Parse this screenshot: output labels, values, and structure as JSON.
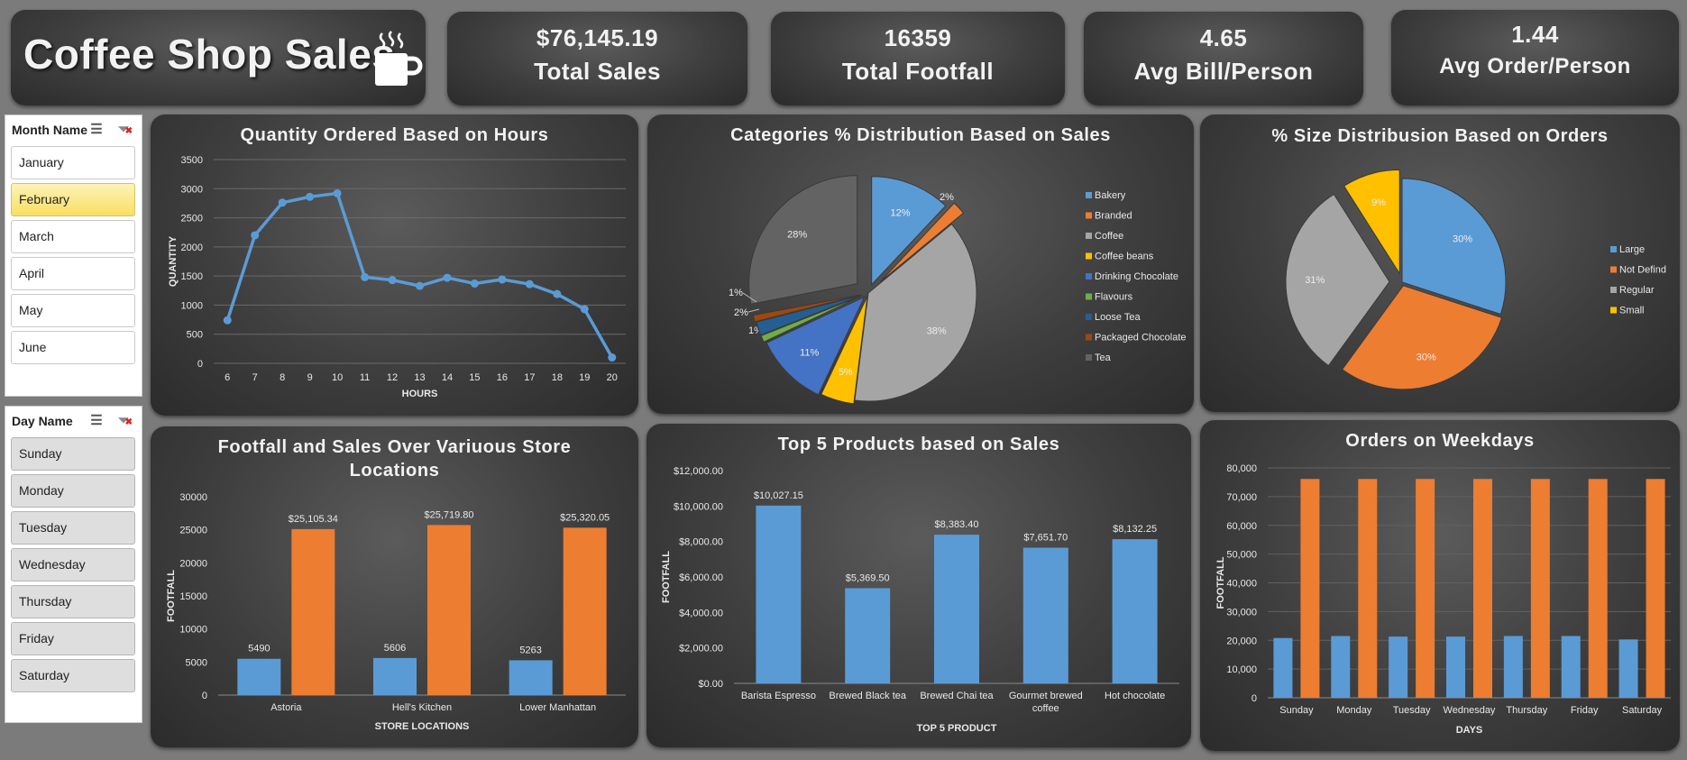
{
  "title": "Coffee Shop Sales",
  "kpis": [
    {
      "value": "$76,145.19",
      "label": "Total Sales"
    },
    {
      "value": "16359",
      "label": "Total Footfall"
    },
    {
      "value": "4.65",
      "label": "Avg Bill/Person"
    },
    {
      "value": "1.44",
      "label": "Avg Order/Person"
    }
  ],
  "month_slicer": {
    "title": "Month Name",
    "items": [
      "January",
      "February",
      "March",
      "April",
      "May",
      "June"
    ],
    "selected": "February"
  },
  "day_slicer": {
    "title": "Day Name",
    "items": [
      "Sunday",
      "Monday",
      "Tuesday",
      "Wednesday",
      "Thursday",
      "Friday",
      "Saturday"
    ]
  },
  "colors": {
    "blue": "#5b9bd5",
    "orange": "#ed7d31",
    "gray": "#a5a5a5",
    "yellow": "#ffc000",
    "darkgray": "#6b6b6b"
  },
  "chart_data": [
    {
      "id": "hours",
      "type": "line",
      "title": "Quantity Ordered Based on Hours",
      "xlabel": "HOURS",
      "ylabel": "QUANTITY",
      "x": [
        6,
        7,
        8,
        9,
        10,
        11,
        12,
        13,
        14,
        15,
        16,
        17,
        18,
        19,
        20
      ],
      "y": [
        740,
        2200,
        2760,
        2860,
        2920,
        1480,
        1430,
        1330,
        1470,
        1370,
        1440,
        1360,
        1190,
        930,
        100
      ],
      "ylim": [
        0,
        3500
      ],
      "yticks": [
        0,
        500,
        1000,
        1500,
        2000,
        2500,
        3000,
        3500
      ],
      "grid": true
    },
    {
      "id": "categories",
      "type": "pie",
      "title": "Categories % Distribution Based on Sales",
      "labels": [
        "Bakery",
        "Branded",
        "Coffee",
        "Coffee beans",
        "Drinking Chocolate",
        "Flavours",
        "Loose Tea",
        "Packaged Chocolate",
        "Tea"
      ],
      "values": [
        12,
        2,
        38,
        5,
        11,
        1,
        2,
        1,
        28
      ],
      "value_labels": [
        "12%",
        "2%",
        "38%",
        "5%",
        "11%",
        "1%",
        "2%",
        "1%",
        "28%"
      ],
      "colors": [
        "#5b9bd5",
        "#ed7d31",
        "#a5a5a5",
        "#ffc000",
        "#4472c4",
        "#70ad47",
        "#255e91",
        "#9e480e",
        "#636363"
      ],
      "legend": "right"
    },
    {
      "id": "sizes",
      "type": "pie",
      "title": "% Size Distribusion Based on Orders",
      "labels": [
        "Large",
        "Not Defind",
        "Regular",
        "Small"
      ],
      "values": [
        30,
        30,
        31,
        9
      ],
      "value_labels": [
        "30%",
        "30%",
        "31%",
        "9%"
      ],
      "colors": [
        "#5b9bd5",
        "#ed7d31",
        "#a5a5a5",
        "#ffc000"
      ],
      "legend": "right"
    },
    {
      "id": "locations",
      "type": "bar",
      "title": "Footfall and Sales Over Variuous Store Locations",
      "xlabel": "STORE LOCATIONS",
      "ylabel": "FOOTFALL",
      "categories": [
        "Astoria",
        "Hell's Kitchen",
        "Lower Manhattan"
      ],
      "series": [
        {
          "values": [
            5490,
            5606,
            5263
          ],
          "labels": [
            "5490",
            "5606",
            "5263"
          ]
        },
        {
          "values": [
            25105.34,
            25719.8,
            25320.05
          ],
          "labels": [
            "$25,105.34",
            "$25,719.80",
            "$25,320.05"
          ]
        }
      ],
      "ylim": [
        0,
        30000
      ],
      "yticks": [
        "0",
        "5000",
        "10000",
        "15000",
        "20000",
        "25000",
        "30000"
      ]
    },
    {
      "id": "products",
      "type": "bar",
      "title": "Top 5 Products based on Sales",
      "xlabel": "TOP 5 PRODUCT",
      "ylabel": "FOOTFALL",
      "categories": [
        "Barista Espresso",
        "Brewed Black tea",
        "Brewed Chai tea",
        "Gourmet brewed coffee",
        "Hot chocolate"
      ],
      "series": [
        {
          "values": [
            10027.15,
            5369.5,
            8383.4,
            7651.7,
            8132.25
          ],
          "labels": [
            "$10,027.15",
            "$5,369.50",
            "$8,383.40",
            "$7,651.70",
            "$8,132.25"
          ]
        }
      ],
      "ylim": [
        0,
        12000
      ],
      "yticks": [
        "$0.00",
        "$2,000.00",
        "$4,000.00",
        "$6,000.00",
        "$8,000.00",
        "$10,000.00",
        "$12,000.00"
      ]
    },
    {
      "id": "weekdays",
      "type": "bar",
      "title": "Orders on Weekdays",
      "xlabel": "DAYS",
      "ylabel": "FOOTFALL",
      "categories": [
        "Sunday",
        "Monday",
        "Tuesday",
        "Wednesday",
        "Thursday",
        "Friday",
        "Saturday"
      ],
      "series": [
        {
          "values": [
            20800,
            21500,
            21300,
            21300,
            21500,
            21500,
            20300
          ]
        },
        {
          "values": [
            76145,
            76145,
            76145,
            76145,
            76145,
            76145,
            76145
          ]
        }
      ],
      "ylim": [
        0,
        80000
      ],
      "yticks": [
        "0",
        "10,000",
        "20,000",
        "30,000",
        "40,000",
        "50,000",
        "60,000",
        "70,000",
        "80,000"
      ]
    }
  ]
}
